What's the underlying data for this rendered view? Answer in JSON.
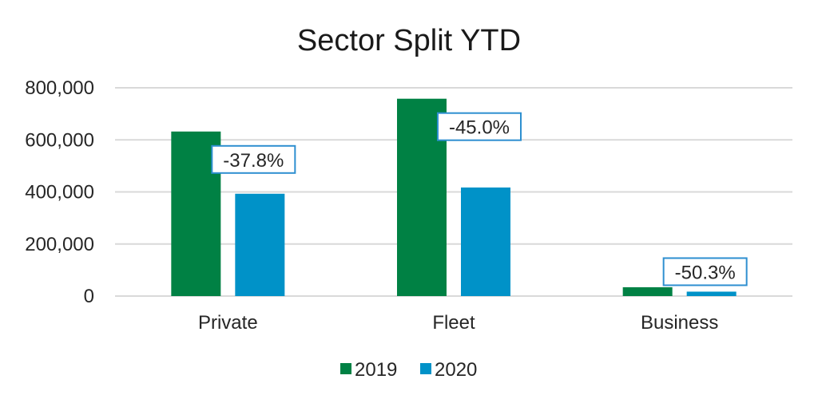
{
  "chart_data": {
    "type": "bar",
    "title": "Sector Split YTD",
    "xlabel": "",
    "ylabel": "",
    "categories": [
      "Private",
      "Fleet",
      "Business"
    ],
    "series": [
      {
        "name": "2019",
        "color": "#008144",
        "values": [
          632000,
          758000,
          34000
        ]
      },
      {
        "name": "2020",
        "color": "#0092C8",
        "values": [
          393000,
          417000,
          17000
        ]
      }
    ],
    "data_labels": [
      "-37.8%",
      "-45.0%",
      "-50.3%"
    ],
    "label_border_color": "#2E8FD0",
    "ylim": [
      0,
      800000
    ],
    "yticks": [
      0,
      200000,
      400000,
      600000,
      800000
    ],
    "ytick_labels": [
      "0",
      "200,000",
      "400,000",
      "600,000",
      "800,000"
    ],
    "grid": true,
    "gridline_color": "#D9D9D9",
    "legend_position": "bottom"
  }
}
